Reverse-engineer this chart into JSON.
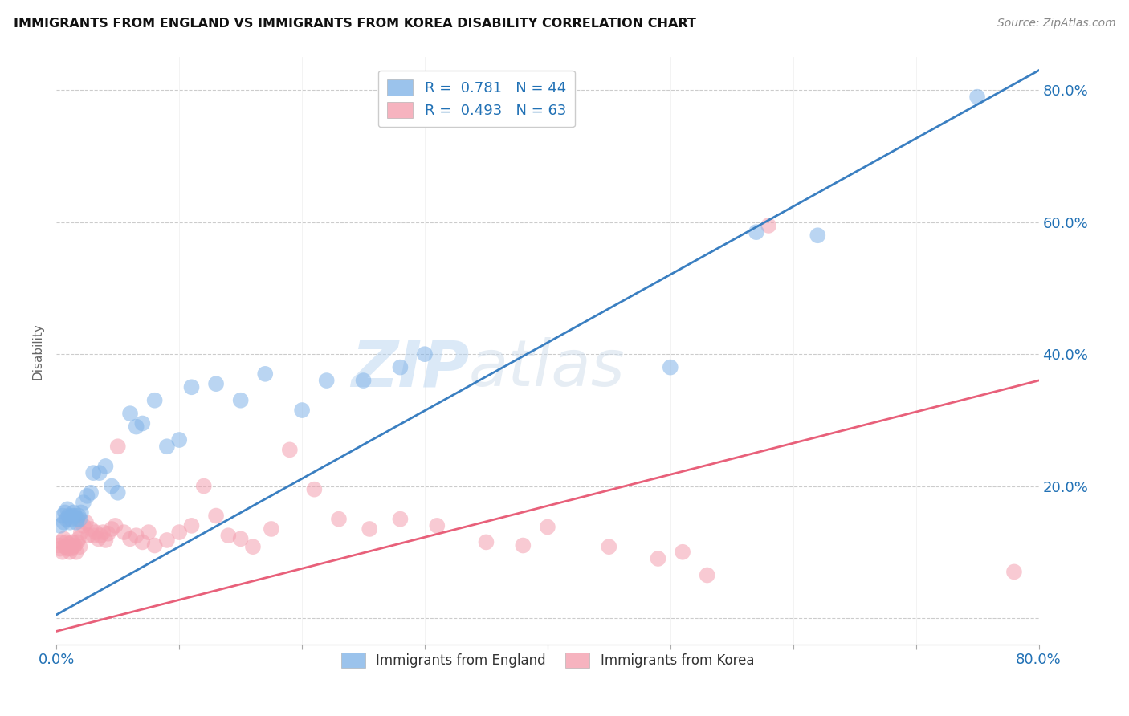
{
  "title": "IMMIGRANTS FROM ENGLAND VS IMMIGRANTS FROM KOREA DISABILITY CORRELATION CHART",
  "source": "Source: ZipAtlas.com",
  "ylabel": "Disability",
  "x_min": 0.0,
  "x_max": 0.8,
  "y_min": -0.04,
  "y_max": 0.85,
  "england_R": 0.781,
  "england_N": 44,
  "korea_R": 0.493,
  "korea_N": 63,
  "england_color": "#82b4e8",
  "korea_color": "#f4a0b0",
  "england_line_color": "#3a7fc1",
  "korea_line_color": "#e8607a",
  "watermark_zip": "ZIP",
  "watermark_atlas": "atlas",
  "england_line_x0": 0.0,
  "england_line_y0": 0.005,
  "england_line_x1": 0.8,
  "england_line_y1": 0.83,
  "korea_line_x0": 0.0,
  "korea_line_y0": -0.02,
  "korea_line_x1": 0.8,
  "korea_line_y1": 0.36,
  "england_scatter_x": [
    0.003,
    0.005,
    0.006,
    0.007,
    0.008,
    0.009,
    0.01,
    0.011,
    0.012,
    0.013,
    0.014,
    0.015,
    0.016,
    0.017,
    0.018,
    0.019,
    0.02,
    0.022,
    0.025,
    0.028,
    0.03,
    0.035,
    0.04,
    0.045,
    0.05,
    0.06,
    0.065,
    0.07,
    0.08,
    0.09,
    0.1,
    0.11,
    0.13,
    0.15,
    0.17,
    0.2,
    0.22,
    0.25,
    0.28,
    0.3,
    0.5,
    0.57,
    0.62,
    0.75
  ],
  "england_scatter_y": [
    0.14,
    0.155,
    0.145,
    0.16,
    0.15,
    0.165,
    0.155,
    0.145,
    0.15,
    0.155,
    0.16,
    0.155,
    0.145,
    0.15,
    0.155,
    0.15,
    0.16,
    0.175,
    0.185,
    0.19,
    0.22,
    0.22,
    0.23,
    0.2,
    0.19,
    0.31,
    0.29,
    0.295,
    0.33,
    0.26,
    0.27,
    0.35,
    0.355,
    0.33,
    0.37,
    0.315,
    0.36,
    0.36,
    0.38,
    0.4,
    0.38,
    0.585,
    0.58,
    0.79
  ],
  "korea_scatter_x": [
    0.002,
    0.003,
    0.004,
    0.005,
    0.006,
    0.007,
    0.008,
    0.009,
    0.01,
    0.011,
    0.012,
    0.013,
    0.014,
    0.015,
    0.016,
    0.017,
    0.018,
    0.019,
    0.02,
    0.022,
    0.024,
    0.026,
    0.028,
    0.03,
    0.032,
    0.034,
    0.036,
    0.038,
    0.04,
    0.042,
    0.045,
    0.048,
    0.05,
    0.055,
    0.06,
    0.065,
    0.07,
    0.075,
    0.08,
    0.09,
    0.1,
    0.11,
    0.12,
    0.13,
    0.14,
    0.15,
    0.16,
    0.175,
    0.19,
    0.21,
    0.23,
    0.255,
    0.28,
    0.31,
    0.35,
    0.38,
    0.4,
    0.45,
    0.49,
    0.51,
    0.53,
    0.58,
    0.78
  ],
  "korea_scatter_y": [
    0.11,
    0.105,
    0.115,
    0.1,
    0.12,
    0.108,
    0.115,
    0.105,
    0.112,
    0.1,
    0.105,
    0.115,
    0.108,
    0.11,
    0.1,
    0.115,
    0.12,
    0.108,
    0.13,
    0.14,
    0.145,
    0.125,
    0.135,
    0.125,
    0.13,
    0.12,
    0.125,
    0.13,
    0.118,
    0.128,
    0.135,
    0.14,
    0.26,
    0.13,
    0.12,
    0.125,
    0.115,
    0.13,
    0.11,
    0.118,
    0.13,
    0.14,
    0.2,
    0.155,
    0.125,
    0.12,
    0.108,
    0.135,
    0.255,
    0.195,
    0.15,
    0.135,
    0.15,
    0.14,
    0.115,
    0.11,
    0.138,
    0.108,
    0.09,
    0.1,
    0.065,
    0.595,
    0.07
  ]
}
